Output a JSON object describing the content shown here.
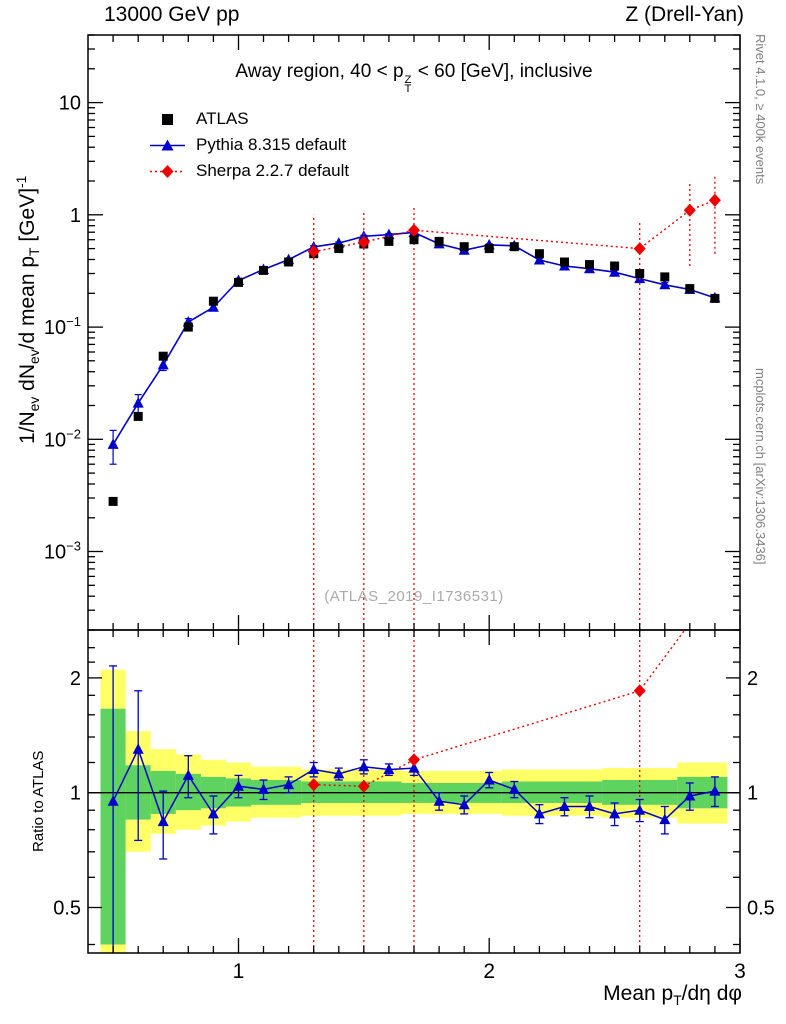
{
  "header": {
    "left": "13000 GeV pp",
    "right": "Z (Drell-Yan)"
  },
  "plot_title": {
    "segments": [
      {
        "t": "Away region, 40 < p"
      },
      {
        "s": "stack",
        "top": "Z",
        "bot": "T"
      },
      {
        "t": " < 60 [GeV], inclusive"
      }
    ]
  },
  "watermark": "(ATLAS_2019_I1736531)",
  "side_notes": {
    "top": "Rivet 4.1.0, ≥ 400k events",
    "bottom": "mcplots.cern.ch [arXiv:1306.3436]"
  },
  "axis_labels": {
    "y_main": {
      "segments": [
        {
          "t": "1/N"
        },
        {
          "t": "ev",
          "s": "sub"
        },
        {
          "t": " dN"
        },
        {
          "t": "ev",
          "s": "sub"
        },
        {
          "t": "/d mean p"
        },
        {
          "t": "T",
          "s": "sub"
        },
        {
          "t": " [GeV]"
        },
        {
          "t": "-1",
          "s": "sup"
        }
      ]
    },
    "y_ratio": "Ratio to ATLAS",
    "x": {
      "segments": [
        {
          "t": "Mean p"
        },
        {
          "t": "T",
          "s": "sub"
        },
        {
          "t": "/dη dφ"
        }
      ]
    }
  },
  "legend": [
    {
      "label": "ATLAS"
    },
    {
      "label": "Pythia 8.315 default"
    },
    {
      "label": "Sherpa 2.2.7 default"
    }
  ],
  "chart_data": {
    "type": "scatter",
    "title": "Away region, 40 < pT(Z) < 60 [GeV], inclusive",
    "legend_position": "top-left-inside",
    "x_axis": {
      "min": 0.4,
      "max": 3.0,
      "major_ticks": [
        1,
        2,
        3
      ],
      "minor_step": 0.1,
      "label": "Mean pT/dη dφ"
    },
    "main_axis": {
      "scale": "log",
      "min": 0.0002,
      "max": 40,
      "labeled_decades": [
        -3,
        -2,
        -1,
        0,
        1
      ],
      "label": "1/Nev dNev/d mean pT [GeV]^-1"
    },
    "ratio_axis": {
      "scale": "log",
      "min": 0.38,
      "max": 2.67,
      "labeled_ticks": [
        0.5,
        1,
        2
      ],
      "minor_ticks": [
        0.4,
        0.6,
        0.7,
        0.8,
        0.9,
        1.2,
        1.4,
        1.6,
        1.8,
        2.2,
        2.4
      ],
      "label": "Ratio to ATLAS"
    },
    "series": {
      "atlas": {
        "label": "ATLAS",
        "color": "#000000",
        "marker": "square",
        "line": "none",
        "x": [
          0.5,
          0.6,
          0.7,
          0.8,
          0.9,
          1.0,
          1.1,
          1.2,
          1.3,
          1.4,
          1.5,
          1.6,
          1.7,
          1.8,
          1.9,
          2.0,
          2.1,
          2.2,
          2.3,
          2.4,
          2.5,
          2.6,
          2.7,
          2.8,
          2.9
        ],
        "y": [
          0.0028,
          0.016,
          0.055,
          0.1,
          0.17,
          0.25,
          0.32,
          0.38,
          0.45,
          0.5,
          0.55,
          0.58,
          0.6,
          0.58,
          0.52,
          0.5,
          0.52,
          0.45,
          0.38,
          0.36,
          0.35,
          0.3,
          0.28,
          0.22,
          0.18
        ]
      },
      "pythia": {
        "label": "Pythia 8.315 default",
        "color": "#0000cc",
        "marker": "triangle",
        "line": "solid",
        "x": [
          0.5,
          0.6,
          0.7,
          0.8,
          0.9,
          1.0,
          1.1,
          1.2,
          1.3,
          1.4,
          1.5,
          1.6,
          1.7,
          1.8,
          1.9,
          2.0,
          2.1,
          2.2,
          2.3,
          2.4,
          2.5,
          2.6,
          2.7,
          2.8,
          2.9
        ],
        "y": [
          0.009,
          0.021,
          0.046,
          0.111,
          0.15,
          0.26,
          0.326,
          0.399,
          0.518,
          0.56,
          0.644,
          0.667,
          0.696,
          0.551,
          0.484,
          0.54,
          0.53,
          0.396,
          0.35,
          0.331,
          0.308,
          0.27,
          0.238,
          0.216,
          0.182
        ],
        "err": [
          0.003,
          0.004,
          0.005,
          0.008,
          0.01,
          0.012,
          0.012,
          0.012,
          0.013,
          0.013,
          0.013,
          0.013,
          0.013,
          0.012,
          0.012,
          0.012,
          0.012,
          0.011,
          0.011,
          0.011,
          0.011,
          0.011,
          0.011,
          0.011,
          0.011
        ]
      },
      "sherpa": {
        "label": "Sherpa 2.2.7 default",
        "color": "#ee0000",
        "marker": "diamond",
        "line": "dotted",
        "x": [
          1.3,
          1.5,
          1.7,
          2.6,
          2.8,
          2.9
        ],
        "y": [
          0.47,
          0.57,
          0.73,
          0.5,
          1.1,
          1.35
        ],
        "err_lo": [
          0.0002,
          0.0002,
          0.0002,
          0.0002,
          0.35,
          0.45
        ],
        "err_hi": [
          1.0,
          1.05,
          1.2,
          0.85,
          2.0,
          2.2
        ]
      }
    },
    "ratio": {
      "reference": 1,
      "pythia": {
        "y": [
          0.95,
          1.3,
          0.84,
          1.11,
          0.88,
          1.04,
          1.02,
          1.05,
          1.15,
          1.12,
          1.17,
          1.15,
          1.16,
          0.95,
          0.93,
          1.08,
          1.02,
          0.88,
          0.92,
          0.92,
          0.88,
          0.9,
          0.85,
          0.98,
          1.01
        ],
        "err": [
          1.2,
          0.55,
          0.17,
          0.14,
          0.1,
          0.07,
          0.06,
          0.05,
          0.05,
          0.04,
          0.05,
          0.04,
          0.05,
          0.05,
          0.05,
          0.05,
          0.05,
          0.05,
          0.05,
          0.06,
          0.06,
          0.06,
          0.07,
          0.08,
          0.09
        ]
      },
      "sherpa": {
        "x": [
          1.3,
          1.5,
          1.7,
          2.6
        ],
        "y": [
          1.05,
          1.04,
          1.22,
          1.85
        ],
        "exit": {
          "x": 2.78,
          "y": 2.67
        }
      },
      "bands": {
        "yellow_color": "#ffff66",
        "green_color": "#5fd35f",
        "yellow": [
          [
            0.45,
            0.55,
            0.33,
            2.1
          ],
          [
            0.55,
            0.65,
            0.7,
            1.45
          ],
          [
            0.65,
            0.75,
            0.78,
            1.3
          ],
          [
            0.75,
            0.85,
            0.8,
            1.26
          ],
          [
            0.85,
            0.95,
            0.82,
            1.22
          ],
          [
            0.95,
            1.05,
            0.84,
            1.2
          ],
          [
            1.05,
            1.25,
            0.86,
            1.17
          ],
          [
            1.25,
            1.65,
            0.87,
            1.15
          ],
          [
            1.65,
            2.05,
            0.88,
            1.14
          ],
          [
            2.05,
            2.45,
            0.87,
            1.15
          ],
          [
            2.45,
            2.75,
            0.86,
            1.16
          ],
          [
            2.75,
            2.95,
            0.83,
            1.2
          ]
        ],
        "green": [
          [
            0.45,
            0.55,
            0.4,
            1.66
          ],
          [
            0.55,
            0.65,
            0.85,
            1.18
          ],
          [
            0.65,
            0.75,
            0.88,
            1.14
          ],
          [
            0.75,
            0.85,
            0.9,
            1.12
          ],
          [
            0.85,
            0.95,
            0.91,
            1.1
          ],
          [
            0.95,
            1.05,
            0.92,
            1.09
          ],
          [
            1.05,
            1.25,
            0.93,
            1.08
          ],
          [
            1.25,
            1.65,
            0.94,
            1.07
          ],
          [
            1.65,
            2.05,
            0.94,
            1.06
          ],
          [
            2.05,
            2.45,
            0.94,
            1.07
          ],
          [
            2.45,
            2.75,
            0.93,
            1.08
          ],
          [
            2.75,
            2.95,
            0.91,
            1.1
          ]
        ]
      }
    }
  }
}
